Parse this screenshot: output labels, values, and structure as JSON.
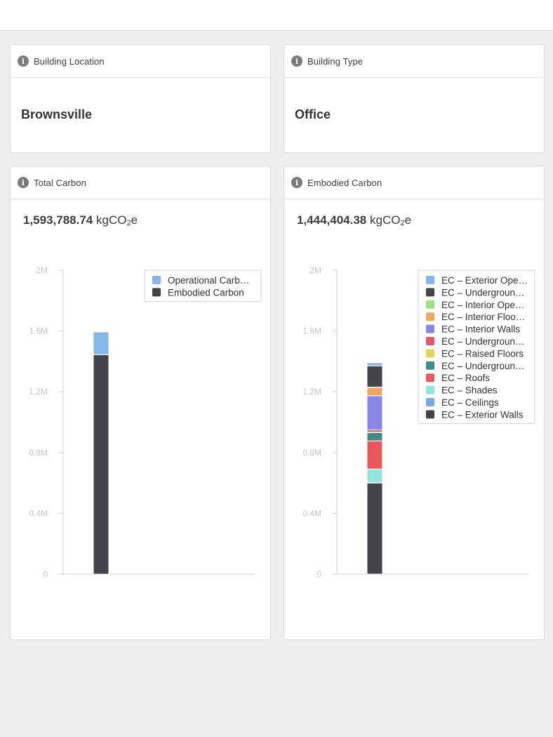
{
  "cards": {
    "location": {
      "title": "Building Location",
      "value": "Brownsville"
    },
    "type": {
      "title": "Building Type",
      "value": "Office"
    },
    "total_carbon": {
      "title": "Total Carbon",
      "value_number": "1,593,788.74",
      "unit_prefix": "kgCO",
      "unit_sub": "2",
      "unit_suffix": "e"
    },
    "embodied_carbon": {
      "title": "Embodied Carbon",
      "value_number": "1,444,404.38",
      "unit_prefix": "kgCO",
      "unit_sub": "2",
      "unit_suffix": "e"
    }
  },
  "icons": {
    "info": "info-icon"
  },
  "info_glyph": "i",
  "chart_data": [
    {
      "type": "bar",
      "stacked": true,
      "ylim": [
        0,
        2000000
      ],
      "yticks": [
        "0",
        "0.4M",
        "0.8M",
        "1.2M",
        "1.6M",
        "2M"
      ],
      "ytick_values": [
        0,
        400000,
        800000,
        1200000,
        1600000,
        2000000
      ],
      "legend_position": "top-right",
      "series": [
        {
          "name": "Operational Carb…",
          "color": "#84b6eb",
          "values": [
            149384
          ]
        },
        {
          "name": "Embodied Carbon",
          "color": "#434348",
          "values": [
            1444404
          ]
        }
      ]
    },
    {
      "type": "bar",
      "stacked": true,
      "ylim": [
        0,
        2000000
      ],
      "yticks": [
        "0",
        "0.4M",
        "0.8M",
        "1.2M",
        "1.6M",
        "2M"
      ],
      "ytick_values": [
        0,
        400000,
        800000,
        1200000,
        1600000,
        2000000
      ],
      "legend_position": "top-right",
      "series": [
        {
          "name": "EC – Exterior Ope…",
          "color": "#84b6eb",
          "values": [
            20000
          ]
        },
        {
          "name": "EC – Undergroun…",
          "color": "#434348",
          "values": [
            140000
          ]
        },
        {
          "name": "EC – Interior Ope…",
          "color": "#9be27f",
          "values": [
            2000
          ]
        },
        {
          "name": "EC – Interior Floo…",
          "color": "#f0a55e",
          "values": [
            55000
          ]
        },
        {
          "name": "EC – Interior Walls",
          "color": "#8786e6",
          "values": [
            225000
          ]
        },
        {
          "name": "EC – Undergroun…",
          "color": "#e4546e",
          "values": [
            15000
          ]
        },
        {
          "name": "EC – Raised Floors",
          "color": "#e4d354",
          "values": [
            2000
          ]
        },
        {
          "name": "EC – Undergroun…",
          "color": "#3f8b86",
          "values": [
            55000
          ]
        },
        {
          "name": "EC – Roofs",
          "color": "#e8585a",
          "values": [
            185000
          ]
        },
        {
          "name": "EC – Shades",
          "color": "#92e4dc",
          "values": [
            90000
          ]
        },
        {
          "name": "EC – Ceilings",
          "color": "#78a8e8",
          "values": [
            2000
          ]
        },
        {
          "name": "EC – Exterior Walls",
          "color": "#434348",
          "values": [
            600000
          ]
        }
      ]
    }
  ]
}
